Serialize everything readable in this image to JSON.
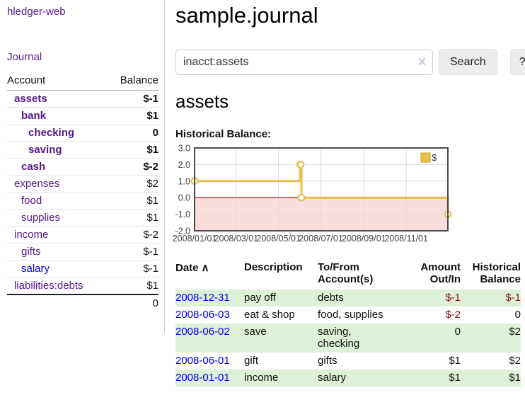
{
  "app": {
    "title": "hledger-web"
  },
  "sidebar": {
    "journal_link": "Journal",
    "accounts": {
      "col_account": "Account",
      "col_balance": "Balance",
      "rows": [
        {
          "name": "assets",
          "balance": "$-1"
        },
        {
          "name": "bank",
          "balance": "$1"
        },
        {
          "name": "checking",
          "balance": "0"
        },
        {
          "name": "saving",
          "balance": "$1"
        },
        {
          "name": "cash",
          "balance": "$-2"
        },
        {
          "name": "expenses",
          "balance": "$2"
        },
        {
          "name": "food",
          "balance": "$1"
        },
        {
          "name": "supplies",
          "balance": "$1"
        },
        {
          "name": "income",
          "balance": "$-2"
        },
        {
          "name": "gifts",
          "balance": "$-1"
        },
        {
          "name": "salary",
          "balance": "$-1"
        },
        {
          "name": "liabilities:debts",
          "balance": "$1"
        }
      ],
      "total": "0"
    }
  },
  "main": {
    "title": "sample.journal",
    "search": {
      "value": "inacct:assets",
      "clear_icon": "✕",
      "search_button": "Search",
      "help_button": "?"
    },
    "account_heading": "assets",
    "chart_label": "Historical Balance:",
    "register": {
      "headers": {
        "date": "Date",
        "sort_icon": "∧",
        "description": "Description",
        "tofrom": "To/From Account(s)",
        "amount": "Amount Out/In",
        "historical": "Historical Balance"
      },
      "rows": [
        {
          "date": "2008-12-31",
          "description": "pay off",
          "tofrom": "debts",
          "amount": "$-1",
          "historical": "$-1"
        },
        {
          "date": "2008-06-03",
          "description": "eat & shop",
          "tofrom": "food, supplies",
          "amount": "$-2",
          "historical": "0"
        },
        {
          "date": "2008-06-02",
          "description": "save",
          "tofrom": "saving,\nchecking",
          "amount": "0",
          "historical": "$2"
        },
        {
          "date": "2008-06-01",
          "description": "gift",
          "tofrom": "gifts",
          "amount": "$1",
          "historical": "$2"
        },
        {
          "date": "2008-01-01",
          "description": "income",
          "tofrom": "salary",
          "amount": "$1",
          "historical": "$1"
        }
      ]
    }
  },
  "colors": {
    "accent_purple": "#551a8b",
    "link_blue": "#0000ee",
    "negative_red": "#8f1010",
    "negative_rose": "#c98888",
    "stripe_green": "#dff0d8",
    "chart_gold": "#e6bf4d",
    "chart_gold_border": "#c9a22a",
    "chart_pink_fill": "#fadddd",
    "chart_zero_line": "#a40000",
    "chart_border": "#4a4a4a",
    "gridline": "#dcdcdc"
  },
  "chart_data": {
    "type": "line",
    "step": true,
    "title": "Historical Balance",
    "legend": [
      "$"
    ],
    "legend_position": "top-right",
    "x": [
      "2008-01-01",
      "2008-06-01",
      "2008-06-02",
      "2008-06-03",
      "2008-12-31"
    ],
    "series": [
      {
        "name": "$",
        "values": [
          1,
          2,
          2,
          0,
          -1
        ]
      }
    ],
    "x_domain": [
      "2008-01-01",
      "2008-12-31"
    ],
    "ylim": [
      -2,
      3
    ],
    "yticks": [
      3.0,
      2.0,
      1.0,
      0.0,
      -1.0,
      -2.0
    ],
    "xtick_dates": [
      "2008-01-01",
      "2008-03-01",
      "2008-05-01",
      "2008-07-01",
      "2008-09-01",
      "2008-11-01"
    ],
    "xtick_labels": [
      "2008/01/01",
      "2008/03/01",
      "2008/05/01",
      "2008/07/01",
      "2008/09/01",
      "2008/11/01"
    ],
    "grid": true,
    "negative_region_fill": true
  }
}
